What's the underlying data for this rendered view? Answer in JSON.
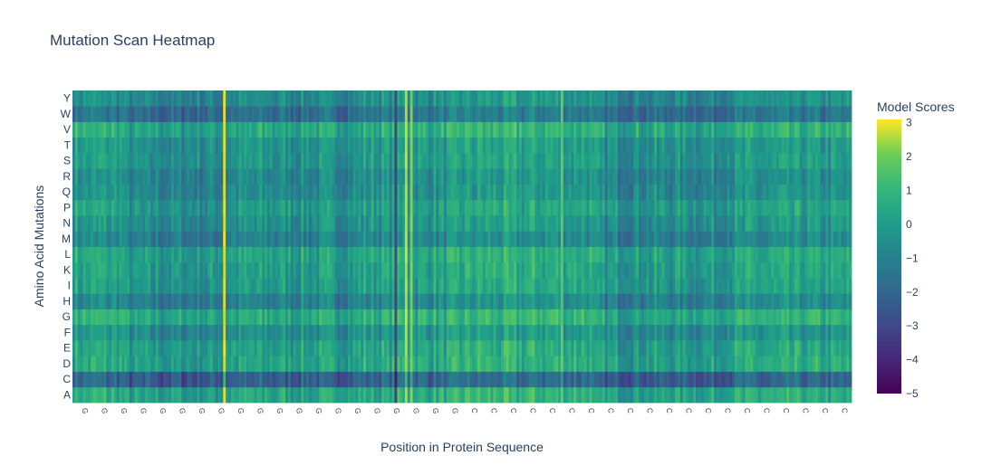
{
  "chart_data": {
    "type": "heatmap",
    "title": "Mutation Scan Heatmap",
    "xlabel": "Position in Protein Sequence",
    "ylabel": "Amino Acid Mutations",
    "y_categories": [
      "A",
      "C",
      "D",
      "E",
      "F",
      "G",
      "H",
      "I",
      "K",
      "L",
      "M",
      "N",
      "P",
      "Q",
      "R",
      "S",
      "T",
      "V",
      "W",
      "Y"
    ],
    "x_count": 300,
    "colorscale": "Viridis",
    "colorbar": {
      "title": "Model Scores",
      "range": [
        -5,
        3.1
      ],
      "ticks": [
        3,
        2,
        1,
        0,
        -1,
        -2,
        -3,
        -4,
        -5
      ],
      "tick_labels": [
        "3",
        "2",
        "1",
        "0",
        "−1",
        "−2",
        "−3",
        "−4",
        "−5"
      ]
    },
    "row_offsets": {
      "A": 0.4,
      "C": -2.2,
      "D": 0.3,
      "E": 0.2,
      "F": -0.5,
      "G": 0.6,
      "H": -0.9,
      "I": 0.0,
      "K": 0.1,
      "L": 0.3,
      "M": -1.0,
      "N": -0.4,
      "P": 0.0,
      "Q": -0.6,
      "R": -0.7,
      "S": -0.2,
      "T": -0.3,
      "V": 0.5,
      "W": -1.6,
      "Y": -0.6
    },
    "column_profile_segments": [
      {
        "from": 0,
        "to": 20,
        "value": 0.3
      },
      {
        "from": 20,
        "to": 60,
        "value": -0.4
      },
      {
        "from": 60,
        "to": 110,
        "value": -0.1
      },
      {
        "from": 110,
        "to": 150,
        "value": 0.2
      },
      {
        "from": 150,
        "to": 200,
        "value": 0.5
      },
      {
        "from": 200,
        "to": 250,
        "value": -0.2
      },
      {
        "from": 250,
        "to": 300,
        "value": 0.1
      }
    ],
    "highlight_columns": [
      {
        "index": 58,
        "value": 2.8
      },
      {
        "index": 124,
        "value": -3.0
      },
      {
        "index": 128,
        "value": 2.6
      },
      {
        "index": 130,
        "value": 2.2
      },
      {
        "index": 188,
        "value": 1.8
      }
    ],
    "x_tick_labels": [
      "G",
      "G",
      "G",
      "G",
      "G",
      "G",
      "G",
      "G",
      "G",
      "G",
      "G",
      "G",
      "G",
      "G",
      "G",
      "G",
      "G",
      "G",
      "G",
      "G",
      "C",
      "C",
      "C",
      "C",
      "C",
      "C",
      "C",
      "C",
      "C",
      "C",
      "C",
      "C",
      "C",
      "C",
      "C",
      "C",
      "C",
      "C",
      "C",
      "C"
    ]
  }
}
